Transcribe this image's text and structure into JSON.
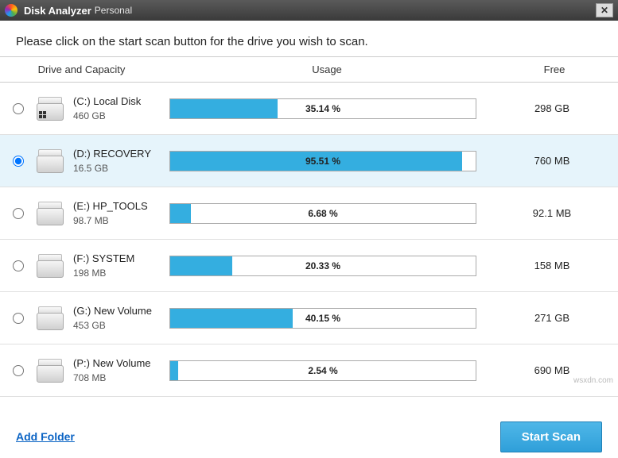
{
  "titlebar": {
    "app_name": "Disk Analyzer",
    "edition": "Personal"
  },
  "instruction": "Please click on the start scan button for the drive you wish to scan.",
  "columns": {
    "drive": "Drive and Capacity",
    "usage": "Usage",
    "free": "Free"
  },
  "usage_bar": {
    "fill_color": "#34aee0",
    "border_color": "#aaaaaa",
    "bg_color": "#ffffff"
  },
  "selected_index": 1,
  "drives": [
    {
      "name": "(C:)  Local Disk",
      "capacity": "460 GB",
      "usage_pct": 35.14,
      "usage_label": "35.14 %",
      "free": "298 GB",
      "os_icon": true
    },
    {
      "name": "(D:)  RECOVERY",
      "capacity": "16.5 GB",
      "usage_pct": 95.51,
      "usage_label": "95.51 %",
      "free": "760 MB",
      "os_icon": false
    },
    {
      "name": "(E:)  HP_TOOLS",
      "capacity": "98.7 MB",
      "usage_pct": 6.68,
      "usage_label": "6.68 %",
      "free": "92.1 MB",
      "os_icon": false
    },
    {
      "name": "(F:)  SYSTEM",
      "capacity": "198 MB",
      "usage_pct": 20.33,
      "usage_label": "20.33 %",
      "free": "158 MB",
      "os_icon": false
    },
    {
      "name": "(G:)  New Volume",
      "capacity": "453 GB",
      "usage_pct": 40.15,
      "usage_label": "40.15 %",
      "free": "271 GB",
      "os_icon": false
    },
    {
      "name": "(P:)  New Volume",
      "capacity": "708 MB",
      "usage_pct": 2.54,
      "usage_label": "2.54 %",
      "free": "690 MB",
      "os_icon": false
    }
  ],
  "footer": {
    "add_folder": "Add Folder",
    "start_scan": "Start Scan"
  },
  "watermark": "wsxdn.com"
}
